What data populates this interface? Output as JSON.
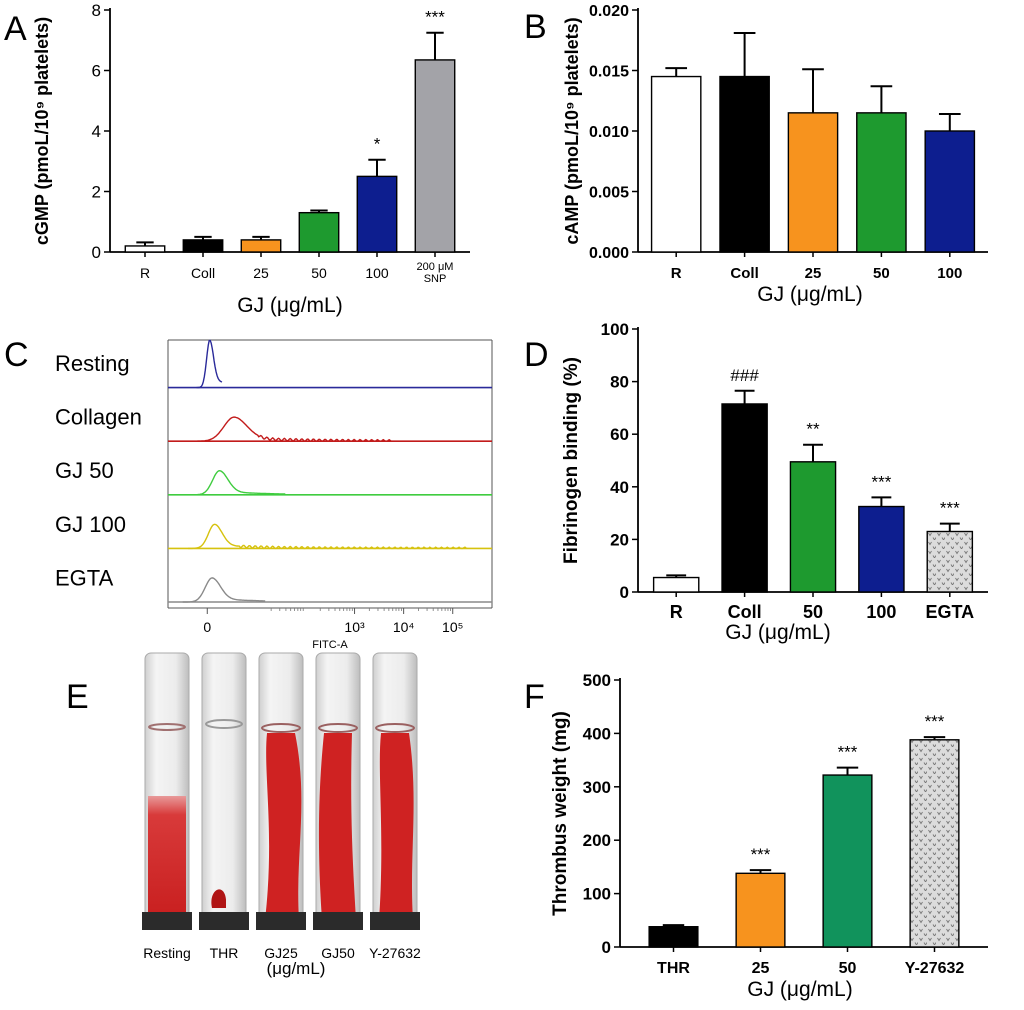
{
  "colors": {
    "black": "#000000",
    "white": "#ffffff",
    "orange": "#f7931e",
    "green_a": "#1e9a2f",
    "navy": "#0d1e8f",
    "gray": "#a3a3a8",
    "green_f": "#11935c",
    "hist_resting": "#2a2a9a",
    "hist_collagen": "#c21b1b",
    "hist_gj50": "#3fcc3f",
    "hist_gj100": "#d6c20e",
    "hist_egta": "#8a8a8a",
    "blood": "#cf2222",
    "blood_dark": "#b01515"
  },
  "chart_data": [
    {
      "panel": "A",
      "type": "bar",
      "ylabel": "cGMP (pmoL/10⁹ platelets)",
      "xlabel": "GJ (μg/mL)",
      "ylim": [
        0,
        8
      ],
      "yticks": [
        "0",
        "2",
        "4",
        "6",
        "8"
      ],
      "categories": [
        "R",
        "Coll",
        "25",
        "50",
        "100",
        "200 μM SNP"
      ],
      "values": [
        0.2,
        0.4,
        0.4,
        1.3,
        2.5,
        6.35
      ],
      "errors": [
        0.12,
        0.1,
        0.1,
        0.07,
        0.55,
        0.9
      ],
      "significance": [
        "",
        "",
        "",
        "",
        "*",
        "***"
      ],
      "fills": [
        "white",
        "black",
        "orange",
        "green_a",
        "navy",
        "gray"
      ]
    },
    {
      "panel": "B",
      "type": "bar",
      "ylabel": "cAMP (pmoL/10⁹ platelets)",
      "xlabel": "GJ (μg/mL)",
      "ylim": [
        0,
        0.02
      ],
      "yticks": [
        "0.000",
        "0.005",
        "0.010",
        "0.015",
        "0.020"
      ],
      "categories": [
        "R",
        "Coll",
        "25",
        "50",
        "100"
      ],
      "values": [
        0.0145,
        0.0145,
        0.0115,
        0.0115,
        0.01
      ],
      "errors": [
        0.0007,
        0.0036,
        0.0036,
        0.0022,
        0.0014
      ],
      "significance": [
        "",
        "",
        "",
        "",
        ""
      ],
      "fills": [
        "white",
        "black",
        "orange",
        "green_a",
        "navy"
      ]
    },
    {
      "panel": "C",
      "type": "histogram",
      "xlabel": "FITC-A",
      "samples": [
        "Resting",
        "Collagen",
        "GJ 50",
        "GJ 100",
        "EGTA"
      ],
      "xticks": [
        "0",
        "10³",
        "10⁴",
        "10⁵"
      ],
      "xtick_positions": [
        0,
        3,
        4,
        5
      ],
      "xrange": [
        -0.8,
        5.8
      ],
      "peak_positions": [
        0.05,
        0.55,
        0.25,
        0.15,
        0.1
      ],
      "peak_widths": [
        0.09,
        0.3,
        0.2,
        0.18,
        0.2
      ],
      "tail_extents": [
        0.3,
        3.8,
        1.6,
        5.3,
        1.2
      ],
      "colors": [
        "hist_resting",
        "hist_collagen",
        "hist_gj50",
        "hist_gj100",
        "hist_egta"
      ]
    },
    {
      "panel": "D",
      "type": "bar",
      "ylabel": "Fibrinogen binding (%)",
      "xlabel": "GJ (μg/mL)",
      "ylim": [
        0,
        100
      ],
      "yticks": [
        "0",
        "20",
        "40",
        "60",
        "80",
        "100"
      ],
      "categories": [
        "R",
        "Coll",
        "50",
        "100",
        "EGTA"
      ],
      "values": [
        5.5,
        71.5,
        49.5,
        32.5,
        23
      ],
      "errors": [
        0.8,
        5,
        6.5,
        3.5,
        3
      ],
      "significance": [
        "",
        "###",
        "**",
        "***",
        "***"
      ],
      "fills": [
        "white",
        "black",
        "green_a",
        "navy",
        "pattern"
      ]
    },
    {
      "panel": "F",
      "type": "bar",
      "ylabel": "Thrombus weight (mg)",
      "xlabel": "GJ (μg/mL)",
      "ylim": [
        0,
        500
      ],
      "yticks": [
        "0",
        "100",
        "200",
        "300",
        "400",
        "500"
      ],
      "categories": [
        "THR",
        "25",
        "50",
        "Y-27632"
      ],
      "values": [
        38,
        138,
        322,
        388
      ],
      "errors": [
        3,
        6,
        14,
        5
      ],
      "significance": [
        "",
        "***",
        "***",
        "***"
      ],
      "fills": [
        "black",
        "orange",
        "green_f",
        "pattern"
      ]
    }
  ],
  "panel_e": {
    "tube_labels": [
      "Resting",
      "THR",
      "GJ25",
      "GJ50",
      "Y-27632"
    ],
    "unit_label": "(μg/mL)",
    "blood_top_fraction": [
      0.52,
      0.86,
      0.3,
      0.3,
      0.3
    ]
  },
  "panel_labels": [
    "A",
    "B",
    "C",
    "D",
    "E",
    "F"
  ]
}
